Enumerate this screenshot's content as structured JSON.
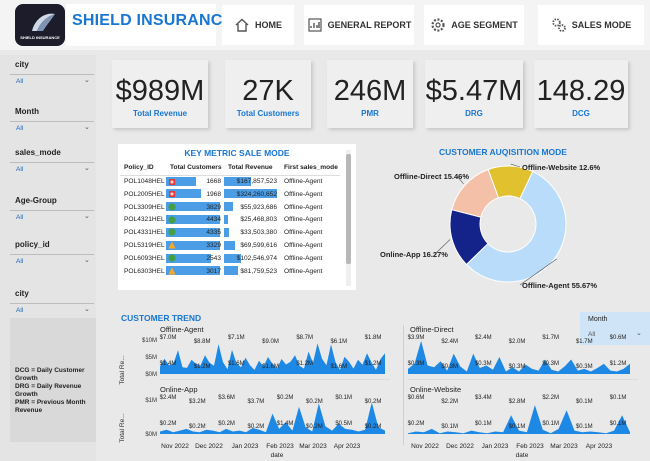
{
  "header": {
    "logo_text": "SHIELD INSURANCE",
    "brand": "SHIELD INSURANCE",
    "nav": [
      {
        "label": "HOME",
        "icon": "home-icon"
      },
      {
        "label": "GENERAL REPORT",
        "icon": "report-icon"
      },
      {
        "label": "AGE SEGMENT",
        "icon": "gear-icon"
      },
      {
        "label": "SALES MODE",
        "icon": "gears-icon"
      }
    ]
  },
  "sidebar": {
    "slicers": [
      {
        "label": "city",
        "value": "All"
      },
      {
        "label": "Month",
        "value": "All"
      },
      {
        "label": "sales_mode",
        "value": "All"
      },
      {
        "label": "Age-Group",
        "value": "All"
      },
      {
        "label": "policy_id",
        "value": "All"
      },
      {
        "label": "city",
        "value": "All"
      }
    ],
    "legend": "DCG = Daily Customer Growth\nDRG = Daily Revenue Growth\nPMR = Previous Month Revenue"
  },
  "kpis": [
    {
      "value": "$989M",
      "label": "Total Revenue"
    },
    {
      "value": "27K",
      "label": "Total Customers"
    },
    {
      "value": "246M",
      "label": "PMR"
    },
    {
      "value": "$5.47M",
      "label": "DRG"
    },
    {
      "value": "148.29",
      "label": "DCG"
    }
  ],
  "key_metric": {
    "title": "KEY METRIC SALE MODE",
    "columns": [
      "Policy_ID",
      "Total Customers",
      "Total Revenue",
      "First sales_mode"
    ],
    "rows": [
      {
        "policy": "POL1048HEL",
        "customers": "1668",
        "revenue": "$167,857,523",
        "mode": "Offline-Agent",
        "icon": "red-diamond",
        "cust_frac": 0.55,
        "rev_frac": 0.5
      },
      {
        "policy": "POL2005HEL",
        "customers": "1968",
        "revenue": "$324,260,652",
        "mode": "Offline-Agent",
        "icon": "red-diamond",
        "cust_frac": 0.65,
        "rev_frac": 0.98
      },
      {
        "policy": "POL3309HEL",
        "customers": "3829",
        "revenue": "$55,923,686",
        "mode": "Offline-Agent",
        "icon": "green-circle",
        "cust_frac": 1.0,
        "rev_frac": 0.17
      },
      {
        "policy": "POL4321HEL",
        "customers": "4434",
        "revenue": "$25,468,803",
        "mode": "Offline-Agent",
        "icon": "green-circle",
        "cust_frac": 1.0,
        "rev_frac": 0.08
      },
      {
        "policy": "POL4331HEL",
        "customers": "4335",
        "revenue": "$33,503,380",
        "mode": "Offline-Agent",
        "icon": "green-circle",
        "cust_frac": 1.0,
        "rev_frac": 0.1
      },
      {
        "policy": "POL5319HEL",
        "customers": "3329",
        "revenue": "$69,599,616",
        "mode": "Offline-Agent",
        "icon": "orange-triangle",
        "cust_frac": 1.0,
        "rev_frac": 0.21
      },
      {
        "policy": "POL6093HEL",
        "customers": "2543",
        "revenue": "$102,546,974",
        "mode": "Offline-Agent",
        "icon": "green-circle",
        "cust_frac": 0.84,
        "rev_frac": 0.31
      },
      {
        "policy": "POL6303HEL",
        "customers": "3017",
        "revenue": "$81,759,523",
        "mode": "Offline-Agent",
        "icon": "orange-triangle",
        "cust_frac": 1.0,
        "rev_frac": 0.25
      }
    ]
  },
  "chart_data": [
    {
      "type": "pie",
      "title": "CUSTOMER AUQISITION MODE",
      "categories": [
        "Offline-Website",
        "Offline-Agent",
        "Online-App",
        "Offline-Direct"
      ],
      "values": [
        12.6,
        55.67,
        16.27,
        15.46
      ],
      "labels": [
        "Offline-Website 12.6%",
        "Offline-Agent 55.67%",
        "Online-App 16.27%",
        "Offline-Direct 15.46%"
      ],
      "colors": [
        "#e2c12f",
        "#b9dcfb",
        "#14238a",
        "#f4c1a8"
      ]
    },
    {
      "type": "area",
      "title": "CUSTOMER TREND",
      "xlabel": "date",
      "ylabel": "Total Re...",
      "x_ticks": [
        "Nov 2022",
        "Dec 2022",
        "Jan 2023",
        "Feb 2023",
        "Mar 2023",
        "Apr 2023"
      ],
      "y_ticks": [
        "$1M",
        "$0M"
      ],
      "series": [
        {
          "name": "Offline-Agent",
          "y_ticks": [
            "$10M",
            "$5M",
            "$0M"
          ],
          "ymax": 10,
          "labels": [
            "$7.0M",
            "$8.8M",
            "$7.1M",
            "$9.0M",
            "$8.7M",
            "$6.1M",
            "$1.8M",
            "$1.4M",
            "$1.2M",
            "$1.6M",
            "$1.6M",
            "$1.2M",
            "$1.6M",
            "$1.2M"
          ],
          "values": [
            2.2,
            4.5,
            2.6,
            3.1,
            7.0,
            2.0,
            1.8,
            4.2,
            3.0,
            2.5,
            5.5,
            3.3,
            2.4,
            8.8,
            3.5,
            1.4,
            7.1,
            3.2,
            2.0,
            4.8,
            2.6,
            1.2,
            3.9,
            2.2,
            5.0,
            3.0,
            1.6,
            4.4,
            2.8,
            3.6,
            5.5,
            2.4,
            1.6,
            6.6,
            3.3,
            9.0,
            4.5,
            2.6,
            8.7,
            3.5,
            1.2,
            5.1,
            3.6,
            1.6,
            4.2,
            2.7,
            6.1,
            3.4,
            1.2,
            4.4,
            6.1
          ]
        },
        {
          "name": "Offline-Direct",
          "y_ticks": [],
          "ymax": 4,
          "labels": [
            "$3.9M",
            "$2.4M",
            "$2.4M",
            "$2.0M",
            "$1.7M",
            "$1.7M",
            "$0.6M",
            "$0.3M",
            "$0.3M",
            "$0.3M",
            "$0.3M",
            "$0.3M",
            "$0.3M",
            "$1.2M"
          ],
          "values": [
            0.6,
            1.2,
            3.9,
            1.0,
            0.8,
            1.5,
            0.4,
            2.4,
            0.9,
            0.3,
            2.4,
            0.7,
            1.0,
            0.5,
            2.0,
            0.3,
            0.8,
            0.3,
            1.1,
            0.6,
            0.4,
            1.7,
            0.5,
            0.3,
            0.9,
            1.7,
            0.4,
            0.6,
            0.3,
            0.7,
            1.2,
            0.4,
            0.3,
            0.6,
            1.2
          ]
        },
        {
          "name": "Online-App",
          "y_ticks": [
            "$1M",
            "$0M"
          ],
          "ymax": 4,
          "labels": [
            "$2.4M",
            "$3.2M",
            "$3.6M",
            "$3.7M",
            "$0.2M",
            "$0.2M",
            "$0.1M",
            "$0.2M",
            "$0.2M",
            "$0.2M",
            "$0.2M",
            "$0.2M",
            "$1.4M",
            "$0.2M",
            "$0.5M",
            "$0.2M"
          ],
          "values": [
            0.3,
            0.5,
            0.2,
            0.4,
            0.6,
            0.3,
            0.2,
            0.5,
            0.4,
            0.2,
            0.6,
            0.3,
            0.4,
            0.2,
            0.7,
            0.5,
            0.2,
            2.4,
            0.6,
            1.4,
            0.4,
            3.2,
            0.8,
            0.3,
            3.6,
            0.9,
            0.4,
            1.2,
            0.6,
            0.5,
            0.3,
            0.5,
            3.7,
            0.8,
            0.4
          ]
        },
        {
          "name": "Online-Website",
          "y_ticks": [],
          "ymax": 4,
          "labels": [
            "$0.6M",
            "$2.2M",
            "$3.4M",
            "$2.8M",
            "$2.2M",
            "$0.1M",
            "$0.1M",
            "$0.2M",
            "$0.1M",
            "$0.1M",
            "$0.1M",
            "$0.1M",
            "$0.1M",
            "$0.1M"
          ],
          "values": [
            0.1,
            0.3,
            0.2,
            0.6,
            0.1,
            0.3,
            0.2,
            0.1,
            0.4,
            0.2,
            0.1,
            0.3,
            0.2,
            2.2,
            0.4,
            0.2,
            3.4,
            0.5,
            0.1,
            0.6,
            2.8,
            0.4,
            0.2,
            0.3,
            0.2,
            0.1,
            0.4,
            2.2,
            0.2
          ]
        }
      ]
    }
  ],
  "month_filter": {
    "label": "Month",
    "value": "All"
  }
}
